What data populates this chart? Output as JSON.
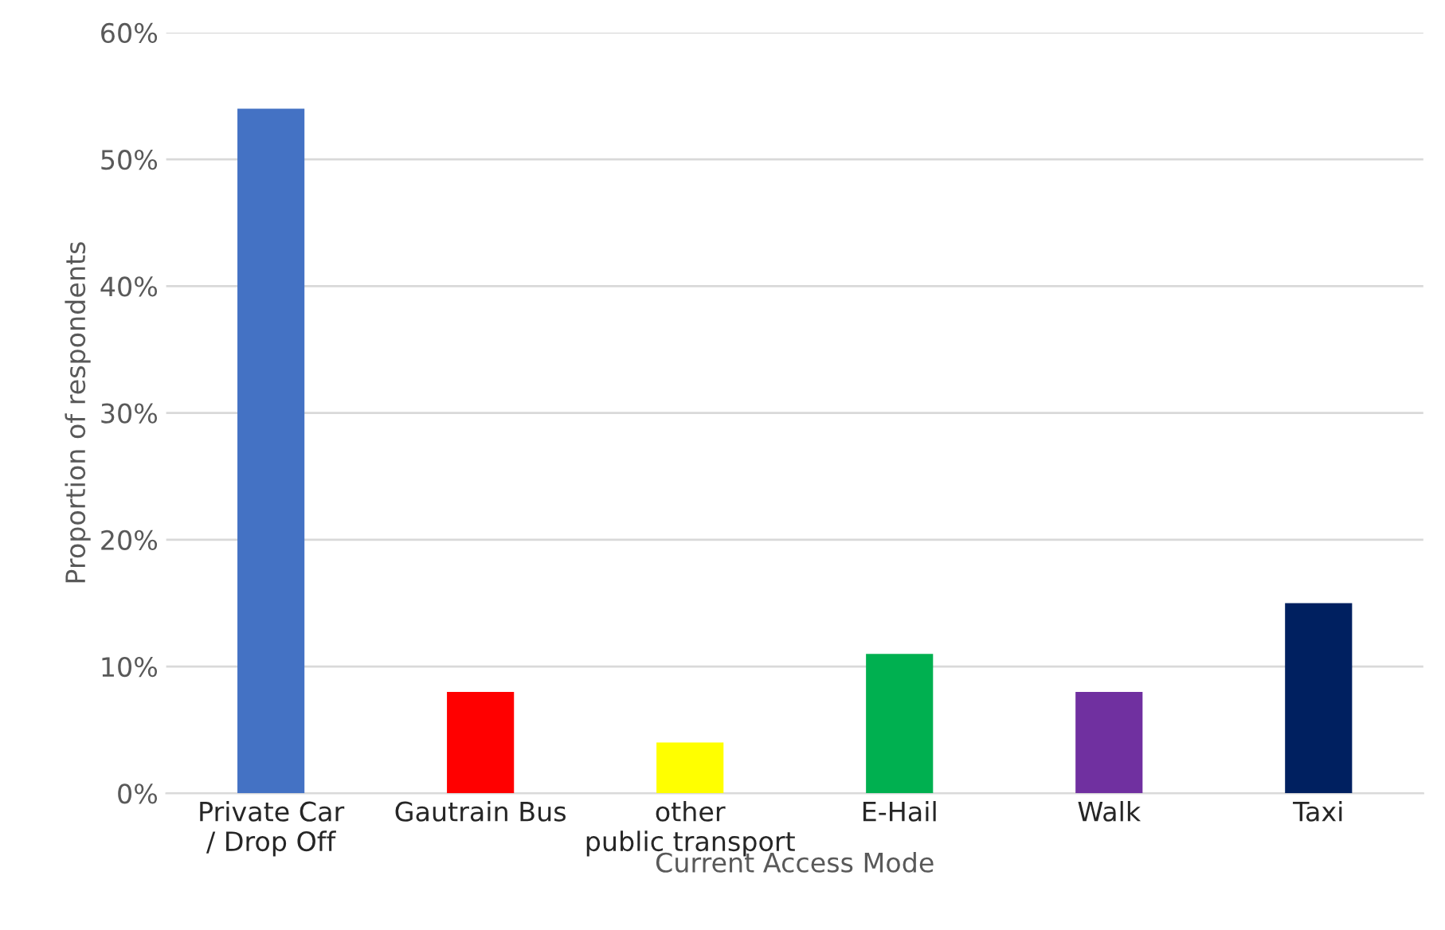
{
  "chart_data": {
    "type": "bar",
    "xlabel": "Current Access Mode",
    "ylabel": "Proportion of respondents",
    "categories": [
      "Private Car\n/ Drop Off",
      "Gautrain Bus",
      "other\npublic transport",
      "E-Hail",
      "Walk",
      "Taxi"
    ],
    "values": [
      54,
      8,
      4,
      11,
      8,
      15
    ],
    "colors": [
      "#4472c4",
      "#ff0000",
      "#ffff00",
      "#00b050",
      "#7030a0",
      "#002060"
    ],
    "ylim": [
      0,
      60
    ],
    "yticks": [
      {
        "value": 0,
        "label": "0%"
      },
      {
        "value": 10,
        "label": "10%"
      },
      {
        "value": 20,
        "label": "20%"
      },
      {
        "value": 30,
        "label": "30%"
      },
      {
        "value": 40,
        "label": "40%"
      },
      {
        "value": 50,
        "label": "50%"
      },
      {
        "value": 60,
        "label": "60%"
      }
    ],
    "grid": "y"
  }
}
